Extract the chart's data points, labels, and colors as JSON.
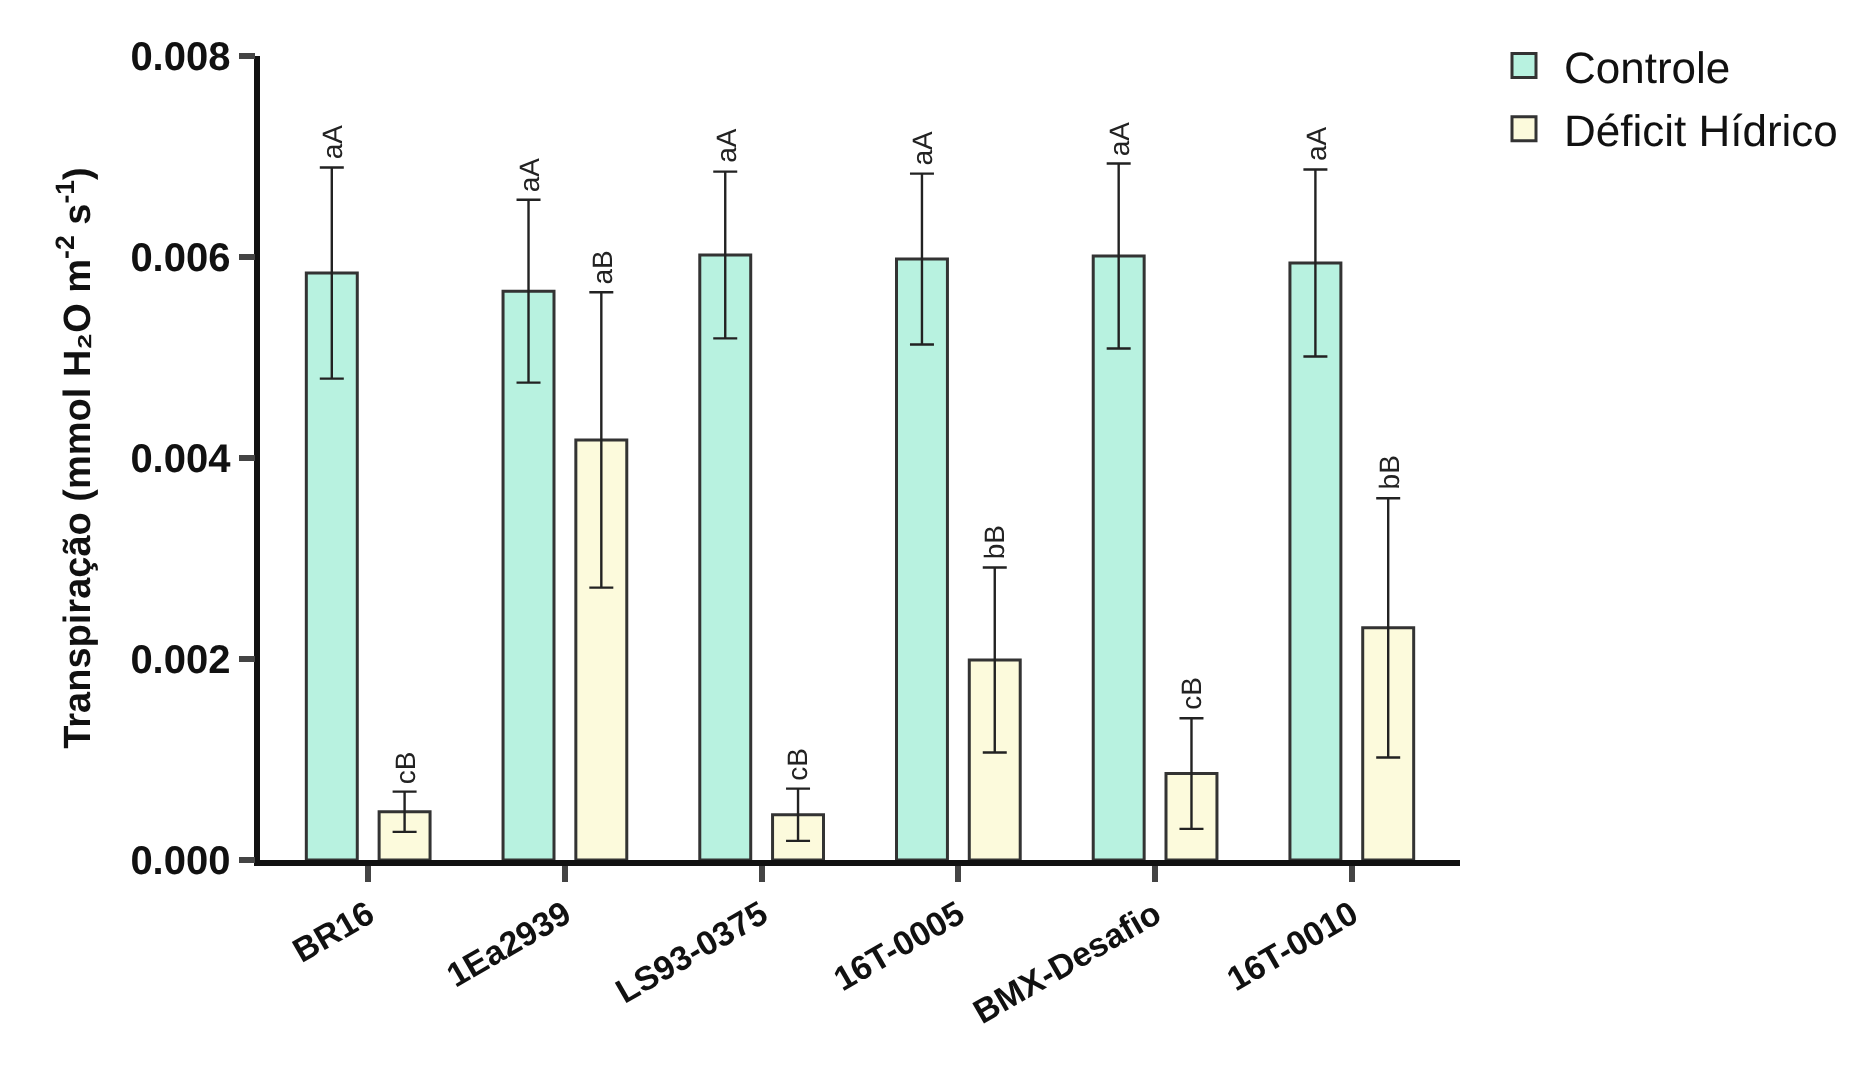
{
  "chart_data": {
    "type": "bar",
    "ylabel": "Transpiração (mmol H₂O m$^{-2}$ s$^{-1}$)",
    "categories": [
      "BR16",
      "1Ea2939",
      "LS93-0375",
      "16T-0005",
      "BMX-Desafio",
      "16T-0010"
    ],
    "series": [
      {
        "name": "Controle",
        "color": "#b8f2e0",
        "values": [
          0.00584,
          0.00566,
          0.00602,
          0.00598,
          0.00601,
          0.00594
        ],
        "errors": [
          0.00105,
          0.00091,
          0.00083,
          0.00085,
          0.00092,
          0.00093
        ]
      },
      {
        "name": "Déficit Hídrico",
        "color": "#fcfadc",
        "values": [
          0.00048,
          0.00418,
          0.00045,
          0.00199,
          0.00086,
          0.00231
        ],
        "errors": [
          0.0002,
          0.00147,
          0.00026,
          0.00092,
          0.00055,
          0.00129
        ]
      }
    ],
    "annotations": [
      "aA",
      "aA",
      "aA",
      "aA",
      "aA",
      "aA",
      "cB",
      "aB",
      "cB",
      "bB",
      "cB",
      "bB"
    ],
    "ylim": [
      0,
      0.008
    ],
    "yticks": [
      {
        "value": 0,
        "label": "0.000"
      },
      {
        "value": 0.002,
        "label": "0.002"
      },
      {
        "value": 0.004,
        "label": "0.004"
      },
      {
        "value": 0.006,
        "label": "0.006"
      },
      {
        "value": 0.008,
        "label": "0.008"
      }
    ],
    "legend": "top right"
  }
}
